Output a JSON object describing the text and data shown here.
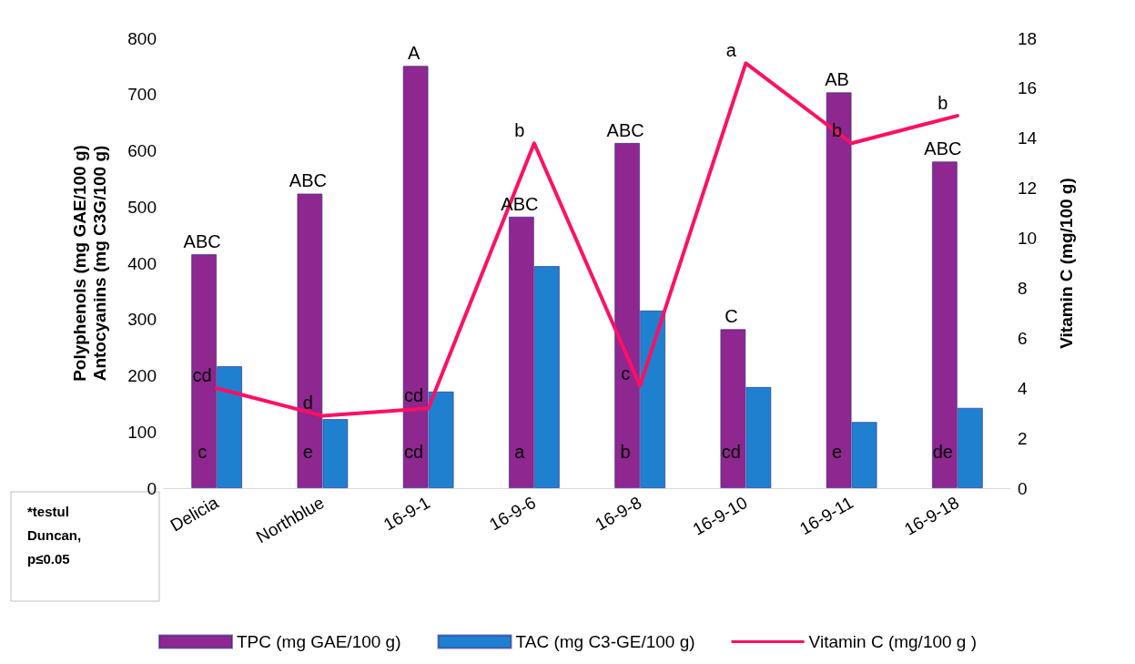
{
  "chart_data": {
    "type": "bar",
    "ylabel": "Polyphenols (mg GAE/100 g)\nAntocyanins (mg C3G/100 g)",
    "y2label": "Vitamin C (mg/100 g)",
    "categories": [
      "Delicia",
      "Northblue",
      "16-9-1",
      "16-9-6",
      "16-9-8",
      "16-9-10",
      "16-9-11",
      "16-9-18"
    ],
    "series": [
      {
        "name": "TPC (mg GAE/100 g)",
        "color": "#8e278f",
        "values": [
          416,
          524,
          751,
          483,
          614,
          283,
          704,
          581
        ]
      },
      {
        "name": "TAC (mg C3-GE/100 g)",
        "color": "#1f80d0",
        "values": [
          217,
          123,
          172,
          395,
          316,
          180,
          118,
          143
        ]
      },
      {
        "name": "Vitamin C (mg/100 g )",
        "type": "line",
        "axis": "y2",
        "color": "#ff0f64",
        "values": [
          4.0,
          2.9,
          3.2,
          13.8,
          4.1,
          17.0,
          13.8,
          14.9
        ]
      }
    ],
    "ylim": [
      0,
      800
    ],
    "yticks": [
      0,
      100,
      200,
      300,
      400,
      500,
      600,
      700,
      800
    ],
    "y2lim": [
      0,
      18
    ],
    "y2ticks": [
      0,
      2,
      4,
      6,
      8,
      10,
      12,
      14,
      16,
      18
    ],
    "grid": false,
    "legend": "bottom",
    "marker": "none",
    "line_style": "solid",
    "annotations": [
      {
        "text": "ABC",
        "x": "Delicia",
        "y": 416
      },
      {
        "text": "ABC",
        "x": "Northblue",
        "y": 524
      },
      {
        "text": "A",
        "x": "16-9-1",
        "y": 751
      },
      {
        "text": "ABC",
        "x": "16-9-6",
        "y": 483
      },
      {
        "text": "ABC",
        "x": "16-9-8",
        "y": 614
      },
      {
        "text": "C",
        "x": "16-9-10",
        "y": 283
      },
      {
        "text": "AB",
        "x": "16-9-11",
        "y": 704
      },
      {
        "text": "ABC",
        "x": "16-9-18",
        "y": 581
      },
      {
        "text": "cd",
        "x": "Delicia",
        "y": 178
      },
      {
        "text": "d",
        "x": "Northblue",
        "y": 129
      },
      {
        "text": "cd",
        "x": "16-9-1",
        "y": 142
      },
      {
        "text": "b",
        "x": "16-9-6",
        "y": 613
      },
      {
        "text": "c",
        "x": "16-9-8",
        "y": 182
      },
      {
        "text": "a",
        "x": "16-9-10",
        "y": 756
      },
      {
        "text": "b",
        "x": "16-9-11",
        "y": 613
      },
      {
        "text": "b",
        "x": "16-9-18",
        "y": 662
      },
      {
        "text": "c",
        "x": "Delicia",
        "y": 42
      },
      {
        "text": "e",
        "x": "Northblue",
        "y": 42
      },
      {
        "text": "cd",
        "x": "16-9-1",
        "y": 42
      },
      {
        "text": "a",
        "x": "16-9-6",
        "y": 42
      },
      {
        "text": "b",
        "x": "16-9-8",
        "y": 42
      },
      {
        "text": "cd",
        "x": "16-9-10",
        "y": 42
      },
      {
        "text": "e",
        "x": "16-9-11",
        "y": 42
      },
      {
        "text": "de",
        "x": "16-9-18",
        "y": 42
      },
      "*testul\nDuncan,\np≤0.05"
    ]
  }
}
